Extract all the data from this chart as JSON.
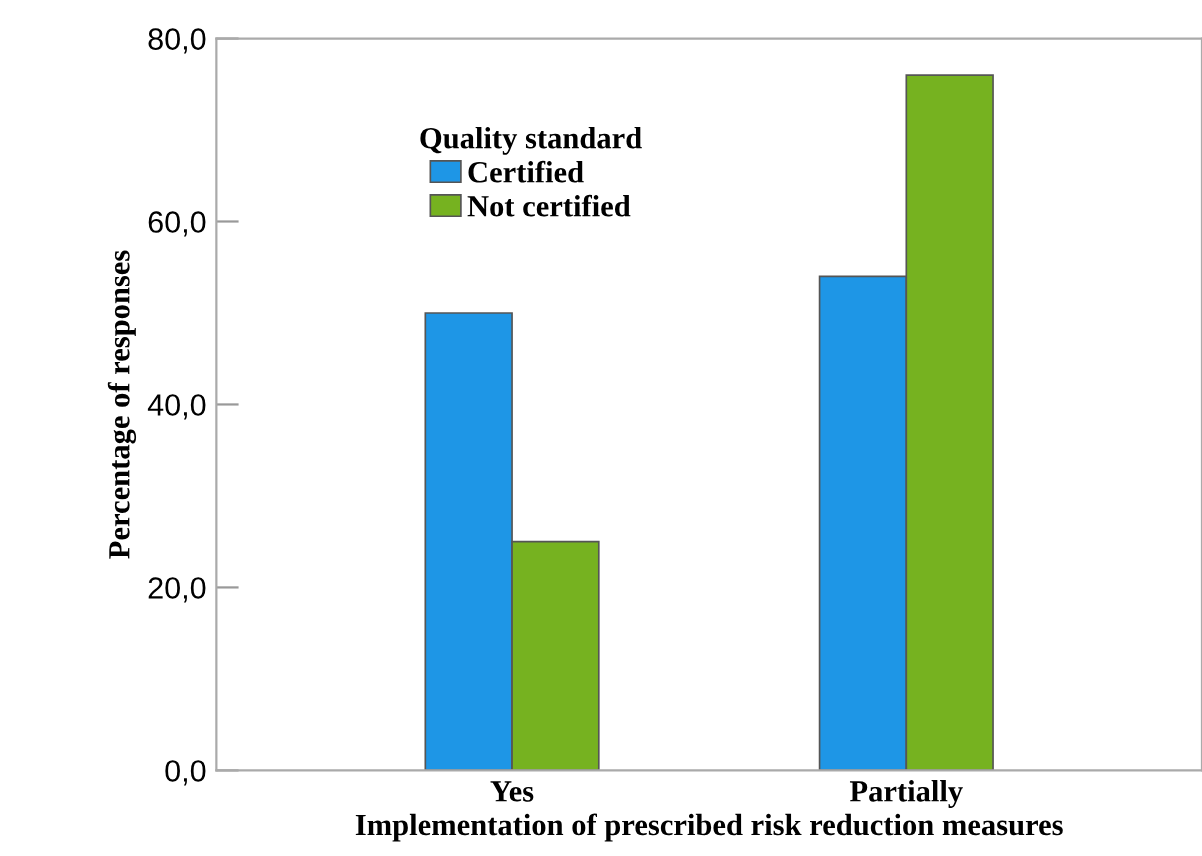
{
  "chart_data": {
    "type": "bar",
    "xlabel": "Implementation of prescribed risk reduction measures",
    "ylabel": "Percentage of responses",
    "legend_title": "Quality standard",
    "categories": [
      "Yes",
      "Partially"
    ],
    "series": [
      {
        "name": "Certified",
        "color": "#1e96e6",
        "values": [
          50,
          54
        ]
      },
      {
        "name": "Not certified",
        "color": "#76b220",
        "values": [
          25,
          76
        ]
      }
    ],
    "ylim": [
      0,
      80
    ],
    "yticks": [
      {
        "value": 0,
        "label": "0,0"
      },
      {
        "value": 20,
        "label": "20,0"
      },
      {
        "value": 40,
        "label": "40,0"
      },
      {
        "value": 60,
        "label": "60,0"
      },
      {
        "value": 80,
        "label": "80,0"
      }
    ],
    "grid": false,
    "legend": "top left"
  }
}
